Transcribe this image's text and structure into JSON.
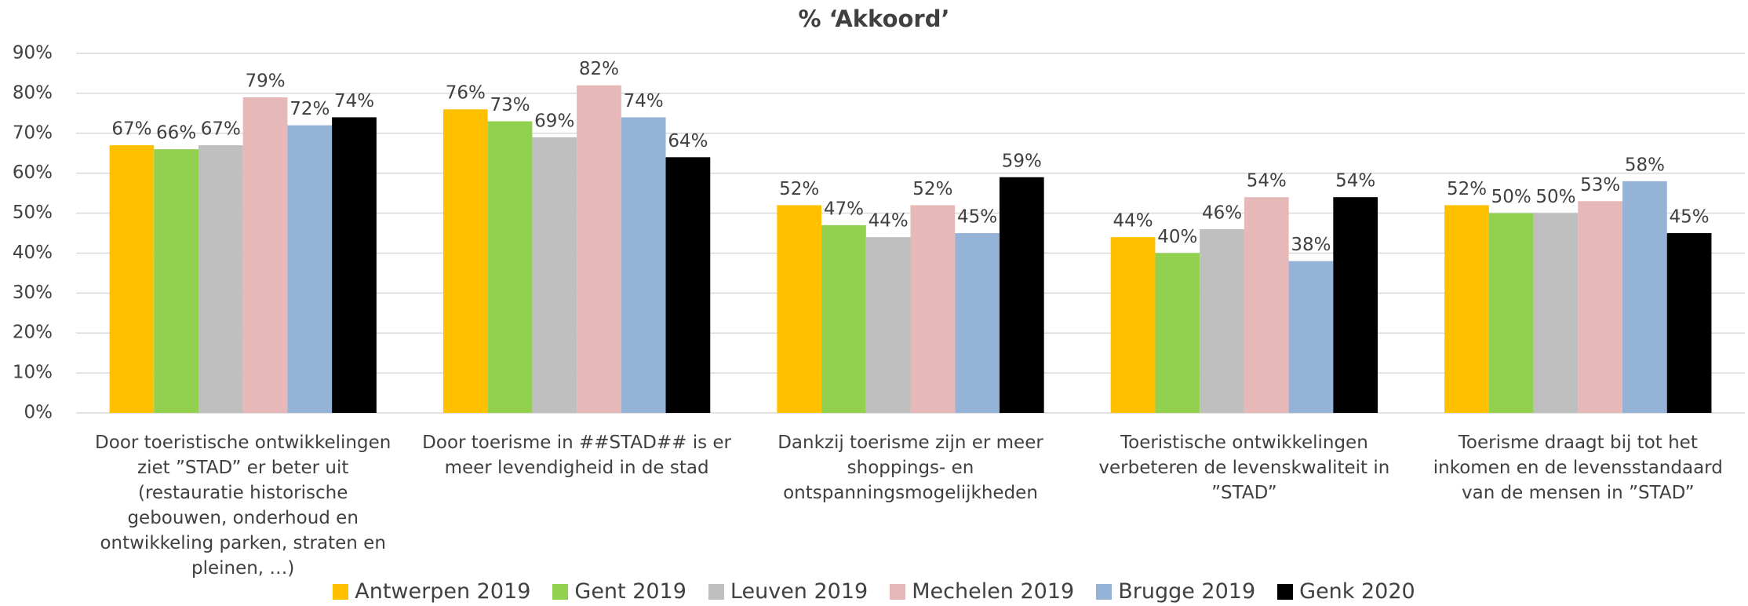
{
  "chart_data": {
    "type": "bar",
    "title": "% ‘Akkoord’",
    "categories": [
      "Door toeristische ontwikkelingen ziet ”STAD” er beter uit (restauratie historische gebouwen, onderhoud en ontwikkeling parken, straten en pleinen, …)",
      "Door toerisme in ##STAD## is er meer levendigheid in de stad",
      "Dankzij toerisme zijn er meer shoppings- en ontspanningsmogelijkheden",
      "Toeristische ontwikkelingen verbeteren de levenskwaliteit in ”STAD”",
      "Toerisme draagt bij tot het inkomen en de levensstandaard van de mensen in ”STAD”"
    ],
    "series": [
      {
        "name": "Antwerpen 2019",
        "color": "#FFC000",
        "values": [
          67,
          76,
          52,
          44,
          52
        ],
        "value_labels": [
          "67%",
          "76%",
          "52%",
          "44%",
          "52%"
        ]
      },
      {
        "name": "Gent 2019",
        "color": "#92D050",
        "values": [
          66,
          73,
          47,
          40,
          50
        ],
        "value_labels": [
          "66%",
          "73%",
          "47%",
          "40%",
          "50%"
        ]
      },
      {
        "name": "Leuven 2019",
        "color": "#BFBFBF",
        "values": [
          67,
          69,
          44,
          46,
          50
        ],
        "value_labels": [
          "67%",
          "69%",
          "44%",
          "46%",
          "50%"
        ]
      },
      {
        "name": "Mechelen 2019",
        "color": "#E6B8B7",
        "values": [
          79,
          82,
          52,
          54,
          53
        ],
        "value_labels": [
          "79%",
          "82%",
          "52%",
          "54%",
          "53%"
        ]
      },
      {
        "name": "Brugge 2019",
        "color": "#95B3D7",
        "values": [
          72,
          74,
          45,
          38,
          58
        ],
        "value_labels": [
          "72%",
          "74%",
          "45%",
          "38%",
          "58%"
        ]
      },
      {
        "name": "Genk 2020",
        "color": "#000000",
        "values": [
          74,
          64,
          59,
          54,
          45
        ],
        "value_labels": [
          "74%",
          "64%",
          "59%",
          "54%",
          "45%"
        ]
      }
    ],
    "ylim": [
      0,
      90
    ],
    "yticks": [
      {
        "value": 0,
        "label": "0%"
      },
      {
        "value": 10,
        "label": "10%"
      },
      {
        "value": 20,
        "label": "20%"
      },
      {
        "value": 30,
        "label": "30%"
      },
      {
        "value": 40,
        "label": "40%"
      },
      {
        "value": 50,
        "label": "50%"
      },
      {
        "value": 60,
        "label": "60%"
      },
      {
        "value": 70,
        "label": "70%"
      },
      {
        "value": 80,
        "label": "80%"
      },
      {
        "value": 90,
        "label": "90%"
      }
    ],
    "grid": true,
    "legend": "bottom"
  }
}
